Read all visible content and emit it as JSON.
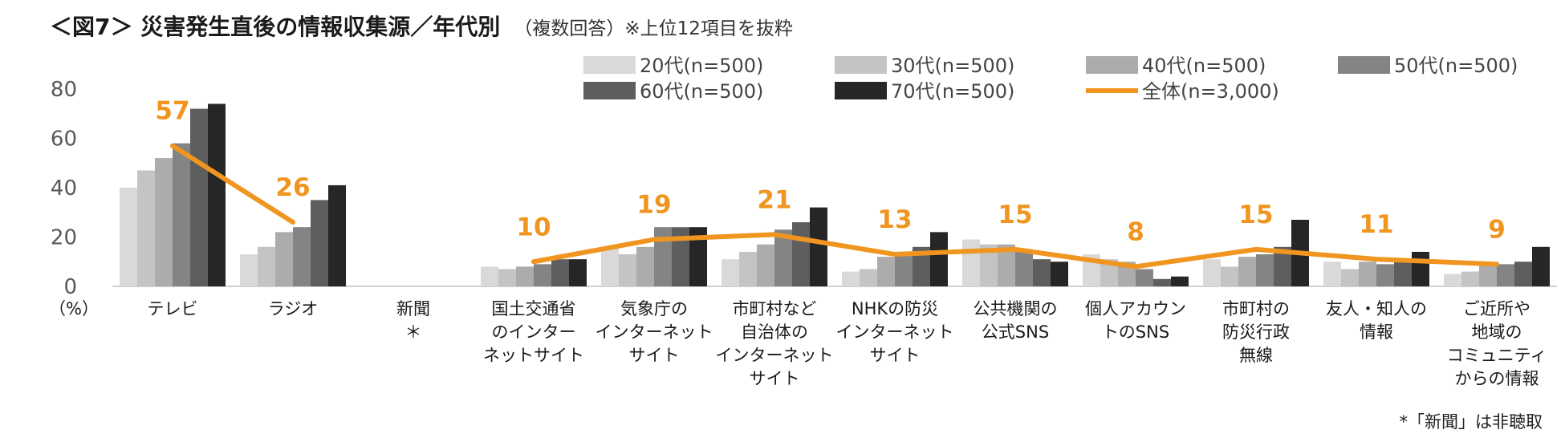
{
  "title": {
    "main": "＜図7＞ 災害発生直後の情報収集源／年代別",
    "sub": "（複数回答）※上位12項目を抜粋"
  },
  "footnote": "*「新聞」は非聴取",
  "chart_data": {
    "type": "bar",
    "unit_label": "（%）",
    "ylim": [
      0,
      80
    ],
    "yticks": [
      0,
      20,
      40,
      60,
      80
    ],
    "categories": [
      [
        "テレビ"
      ],
      [
        "ラジオ"
      ],
      [
        "新聞",
        "＊"
      ],
      [
        "国土交通省",
        "のインター",
        "ネットサイト"
      ],
      [
        "気象庁の",
        "インターネット",
        "サイト"
      ],
      [
        "市町村など",
        "自治体の",
        "インターネット",
        "サイト"
      ],
      [
        "NHKの防災",
        "インターネット",
        "サイト"
      ],
      [
        "公共機関の",
        "公式SNS"
      ],
      [
        "個人アカウン",
        "トのSNS"
      ],
      [
        "市町村の",
        "防災行政",
        "無線"
      ],
      [
        "友人・知人の",
        "情報"
      ],
      [
        "ご近所や",
        "地域の",
        "コミュニティ",
        "からの情報"
      ]
    ],
    "series": [
      {
        "name": "20代(n=500)",
        "color": "#d9d9d9",
        "values": [
          40,
          13,
          null,
          8,
          16,
          11,
          6,
          19,
          13,
          11,
          10,
          5
        ]
      },
      {
        "name": "30代(n=500)",
        "color": "#c4c4c4",
        "values": [
          47,
          16,
          null,
          7,
          13,
          14,
          7,
          17,
          11,
          8,
          7,
          6
        ]
      },
      {
        "name": "40代(n=500)",
        "color": "#acacac",
        "values": [
          52,
          22,
          null,
          8,
          16,
          17,
          12,
          17,
          10,
          12,
          10,
          9
        ]
      },
      {
        "name": "50代(n=500)",
        "color": "#848484",
        "values": [
          58,
          24,
          null,
          9,
          24,
          23,
          14,
          14,
          7,
          13,
          9,
          9
        ]
      },
      {
        "name": "60代(n=500)",
        "color": "#5e5e5e",
        "values": [
          72,
          35,
          null,
          11,
          24,
          26,
          16,
          11,
          3,
          16,
          10,
          10
        ]
      },
      {
        "name": "70代(n=500)",
        "color": "#262626",
        "values": [
          74,
          41,
          null,
          11,
          24,
          32,
          22,
          10,
          4,
          27,
          14,
          16
        ]
      }
    ],
    "line": {
      "name": "全体(n=3,000)",
      "color": "#f0951f",
      "values": [
        57,
        26,
        null,
        10,
        19,
        21,
        13,
        15,
        8,
        15,
        11,
        9
      ],
      "labels": [
        "57",
        "26",
        "",
        "10",
        "19",
        "21",
        "13",
        "15",
        "8",
        "15",
        "11",
        "9"
      ]
    }
  }
}
